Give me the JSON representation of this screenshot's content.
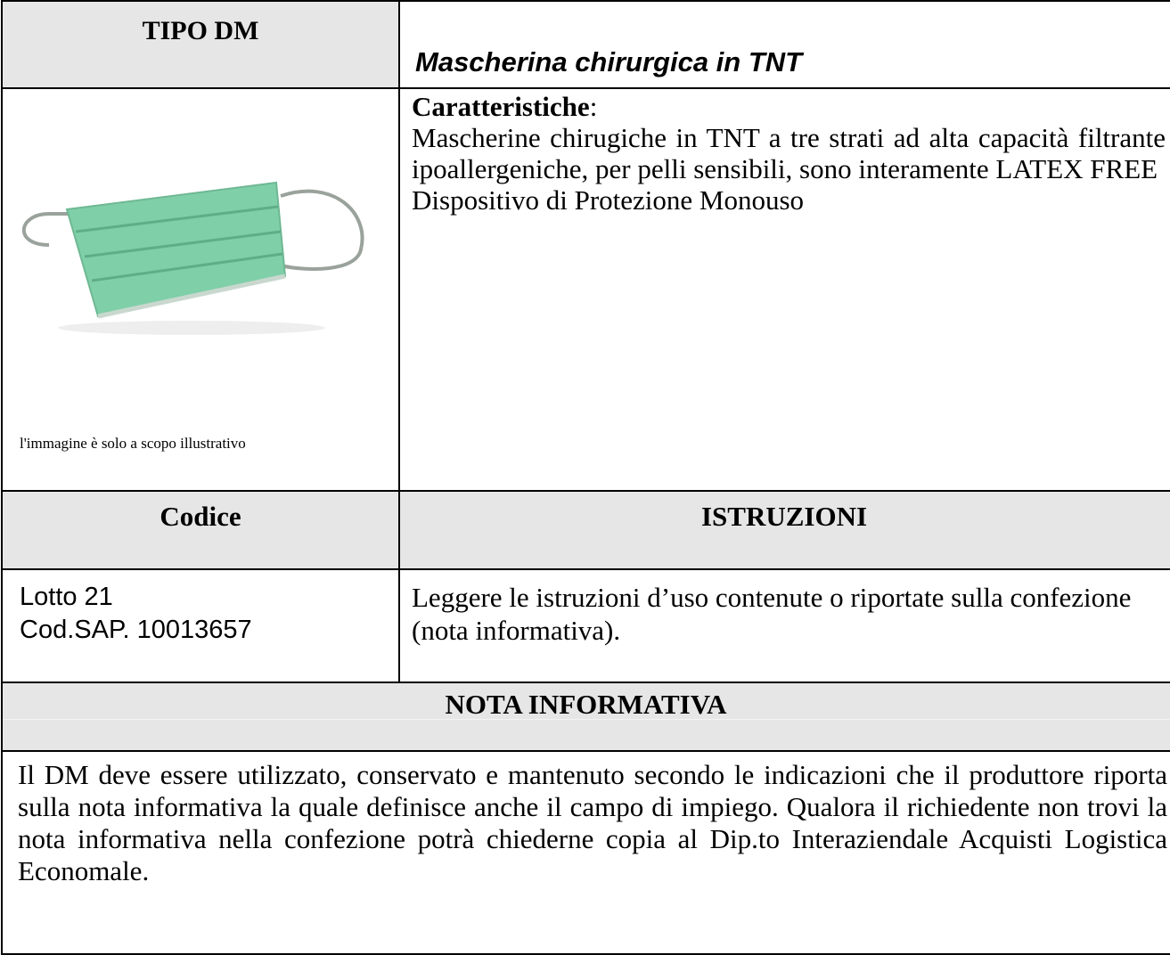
{
  "header": {
    "left": "TIPO DM",
    "right": "Mascherina chirurgica in TNT"
  },
  "product": {
    "image_caption": "l'immagine è solo a scopo illustrativo",
    "features_label": "Caratteristiche",
    "features_label_suffix": ":",
    "features_text": "Mascherine chirugiche in TNT a tre strati ad alta capacità filtrante ipoallergeniche, per pelli sensibili, sono interamente LATEX FREE",
    "features_note": "Dispositivo di Protezione Monouso"
  },
  "codes_header": {
    "left": "Codice",
    "right": "ISTRUZIONI"
  },
  "codes": {
    "lot": "Lotto 21",
    "sap": "Cod.SAP. 10013657",
    "instructions": "Leggere le istruzioni d’uso contenute o riportate sulla confezione (nota informativa)."
  },
  "note": {
    "title": "NOTA INFORMATIVA",
    "text": "Il DM deve essere utilizzato, conservato e mantenuto secondo le indicazioni che il produttore riporta sulla nota informativa la quale definisce anche il campo di impiego. Qualora il richiedente non trovi la nota informativa nella confezione potrà chiederne copia al Dip.to Interaziendale Acquisti Logistica Economale."
  }
}
